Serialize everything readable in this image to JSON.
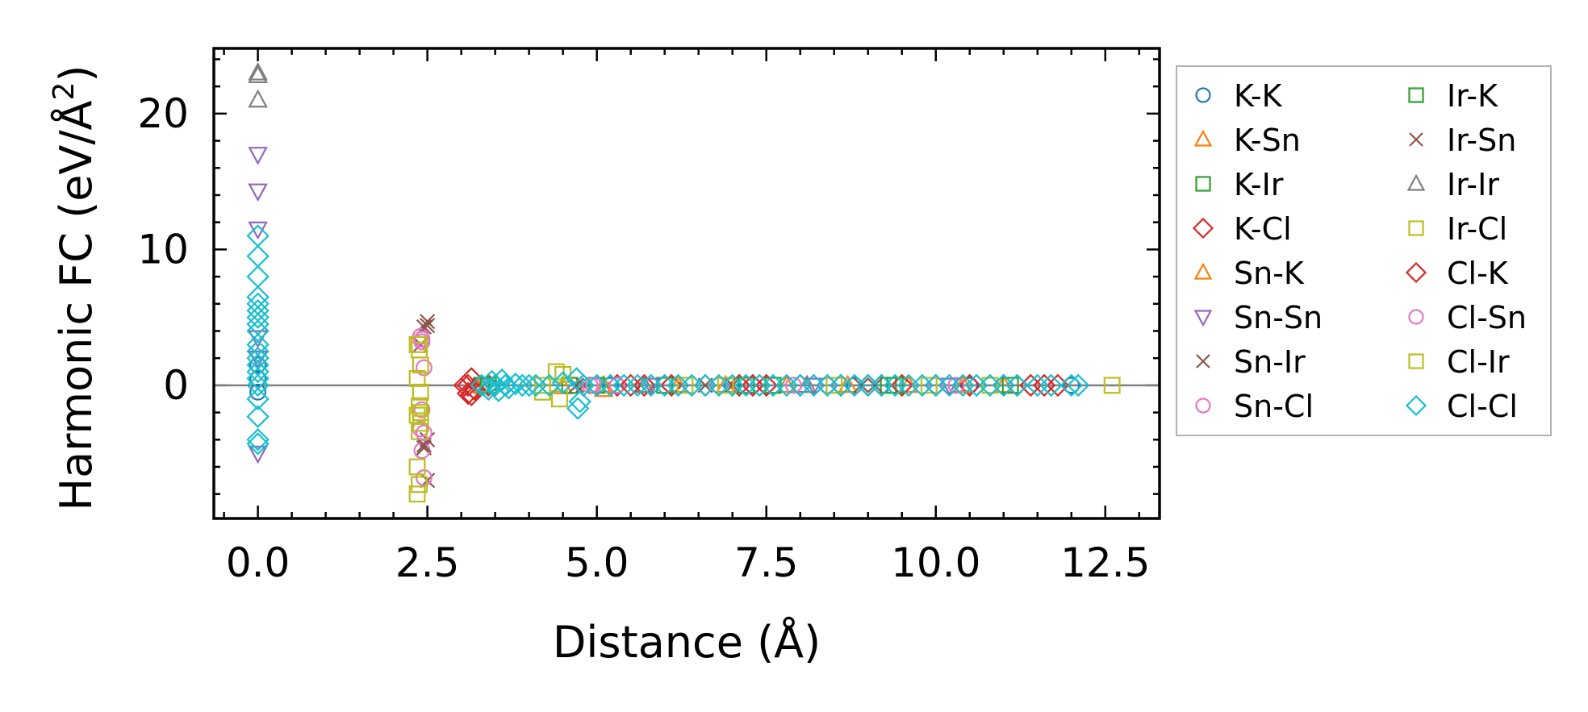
{
  "chart_data": {
    "type": "scatter",
    "title": "",
    "xlabel": "Distance (Å)",
    "ylabel_prefix": "Harmonic FC (eV/Å",
    "ylabel_sup": "2",
    "ylabel_suffix": ")",
    "xlim": [
      -0.65,
      13.3
    ],
    "ylim": [
      -9.8,
      24.8
    ],
    "xticks": [
      0.0,
      2.5,
      5.0,
      7.5,
      10.0,
      12.5
    ],
    "xtick_labels": [
      "0.0",
      "2.5",
      "5.0",
      "7.5",
      "10.0",
      "12.5"
    ],
    "yticks": [
      0,
      10,
      20
    ],
    "ytick_labels": [
      "0",
      "10",
      "20"
    ],
    "grid": false,
    "zero_line": true,
    "legend_position": "outside-right",
    "series": [
      {
        "name": "K-K",
        "marker": "circle",
        "color": "#1f77b4",
        "points": [
          [
            0.0,
            0.5
          ],
          [
            0.0,
            1.5
          ],
          [
            0.0,
            -0.5
          ],
          [
            3.3,
            0.0
          ],
          [
            5.2,
            0.0
          ],
          [
            7.0,
            0.0
          ],
          [
            8.8,
            0.0
          ],
          [
            10.5,
            0.0
          ],
          [
            12.0,
            0.0
          ]
        ]
      },
      {
        "name": "K-Sn",
        "marker": "triangle-up",
        "color": "#ff7f0e",
        "points": [
          [
            3.3,
            0.0
          ],
          [
            4.5,
            -0.1
          ],
          [
            5.1,
            -0.3
          ],
          [
            6.2,
            0.0
          ],
          [
            7.8,
            0.0
          ],
          [
            9.6,
            0.0
          ],
          [
            11.0,
            0.0
          ]
        ]
      },
      {
        "name": "K-Ir",
        "marker": "square",
        "color": "#2ca02c",
        "points": [
          [
            3.3,
            0.0
          ],
          [
            4.6,
            0.0
          ],
          [
            6.0,
            0.0
          ],
          [
            7.6,
            0.0
          ],
          [
            9.3,
            0.0
          ],
          [
            11.1,
            0.0
          ]
        ]
      },
      {
        "name": "K-Cl",
        "marker": "diamond",
        "color": "#d62728",
        "points": [
          [
            3.05,
            0.0
          ],
          [
            3.1,
            -0.6
          ],
          [
            3.15,
            0.5
          ],
          [
            3.2,
            -0.3
          ],
          [
            3.4,
            0.0
          ],
          [
            5.3,
            0.0
          ],
          [
            5.7,
            0.0
          ],
          [
            6.1,
            0.0
          ],
          [
            6.6,
            0.0
          ],
          [
            7.1,
            0.0
          ],
          [
            7.5,
            0.0
          ],
          [
            8.0,
            0.0
          ],
          [
            8.6,
            0.0
          ],
          [
            9.0,
            0.0
          ],
          [
            9.5,
            0.0
          ],
          [
            10.0,
            0.0
          ],
          [
            10.5,
            0.0
          ],
          [
            11.2,
            0.0
          ],
          [
            11.6,
            0.0
          ],
          [
            11.8,
            0.0
          ]
        ]
      },
      {
        "name": "Sn-K",
        "marker": "triangle-up",
        "color": "#ff7f0e",
        "points": [
          [
            3.3,
            0.0
          ],
          [
            5.1,
            0.0
          ],
          [
            6.9,
            0.0
          ],
          [
            8.7,
            0.0
          ],
          [
            10.4,
            0.0
          ]
        ]
      },
      {
        "name": "Sn-Sn",
        "marker": "triangle-down",
        "color": "#9467bd",
        "points": [
          [
            0.0,
            17.0
          ],
          [
            0.0,
            14.3
          ],
          [
            0.0,
            11.5
          ],
          [
            0.0,
            -5.0
          ],
          [
            0.0,
            3.5
          ],
          [
            0.0,
            2.0
          ],
          [
            5.8,
            0.0
          ],
          [
            8.2,
            0.0
          ],
          [
            10.2,
            0.0
          ]
        ]
      },
      {
        "name": "Sn-Ir",
        "marker": "x",
        "color": "#8c564b",
        "points": [
          [
            2.5,
            4.7
          ],
          [
            2.45,
            4.3
          ],
          [
            2.5,
            -4.0
          ],
          [
            2.45,
            -4.6
          ],
          [
            2.5,
            -7.0
          ],
          [
            2.4,
            3.0
          ],
          [
            4.8,
            0.0
          ],
          [
            7.0,
            0.0
          ],
          [
            9.1,
            0.0
          ]
        ]
      },
      {
        "name": "Sn-Cl",
        "marker": "circle",
        "color": "#e377c2",
        "points": [
          [
            2.4,
            3.6
          ],
          [
            2.42,
            3.2
          ],
          [
            2.45,
            1.3
          ],
          [
            2.42,
            -1.8
          ],
          [
            2.4,
            -3.2
          ],
          [
            2.42,
            -4.8
          ],
          [
            2.45,
            -6.8
          ],
          [
            4.9,
            0.0
          ],
          [
            5.3,
            0.0
          ],
          [
            6.8,
            0.0
          ],
          [
            8.4,
            0.0
          ],
          [
            10.0,
            0.0
          ]
        ]
      },
      {
        "name": "Ir-K",
        "marker": "square",
        "color": "#2ca02c",
        "points": [
          [
            3.4,
            0.0
          ],
          [
            5.0,
            0.0
          ],
          [
            7.2,
            0.0
          ],
          [
            9.4,
            0.0
          ]
        ]
      },
      {
        "name": "Ir-Sn",
        "marker": "x",
        "color": "#8c564b",
        "points": [
          [
            2.5,
            4.4
          ],
          [
            2.45,
            -4.4
          ],
          [
            4.7,
            0.0
          ],
          [
            6.6,
            0.0
          ],
          [
            8.9,
            0.0
          ]
        ]
      },
      {
        "name": "Ir-Ir",
        "marker": "triangle-up",
        "color": "#7f7f7f",
        "points": [
          [
            0.0,
            23.0
          ],
          [
            0.0,
            22.8
          ],
          [
            0.0,
            21.0
          ],
          [
            5.7,
            0.0
          ],
          [
            8.1,
            0.0
          ]
        ]
      },
      {
        "name": "Ir-Cl",
        "marker": "square",
        "color": "#bcbd22",
        "points": [
          [
            2.35,
            3.0
          ],
          [
            2.38,
            2.6
          ],
          [
            2.35,
            0.5
          ],
          [
            2.4,
            -0.5
          ],
          [
            2.38,
            -1.5
          ],
          [
            2.35,
            -2.2
          ],
          [
            2.4,
            -2.8
          ],
          [
            2.38,
            -3.4
          ],
          [
            2.35,
            -6.0
          ],
          [
            2.38,
            -7.3
          ],
          [
            2.35,
            -8.0
          ],
          [
            2.4,
            1.5
          ],
          [
            4.2,
            0.0
          ],
          [
            4.4,
            1.0
          ],
          [
            4.45,
            -1.0
          ],
          [
            6.3,
            0.0
          ],
          [
            8.5,
            0.0
          ],
          [
            10.8,
            0.0
          ],
          [
            12.6,
            0.0
          ]
        ]
      },
      {
        "name": "Cl-K",
        "marker": "diamond",
        "color": "#d62728",
        "points": [
          [
            3.1,
            0.0
          ],
          [
            3.15,
            -0.7
          ],
          [
            5.5,
            0.0
          ],
          [
            7.3,
            0.0
          ],
          [
            9.2,
            0.0
          ],
          [
            11.0,
            0.0
          ],
          [
            11.4,
            0.0
          ]
        ]
      },
      {
        "name": "Cl-Sn",
        "marker": "circle",
        "color": "#e377c2",
        "points": [
          [
            2.42,
            3.4
          ],
          [
            2.45,
            -3.5
          ],
          [
            4.95,
            0.0
          ],
          [
            7.9,
            0.0
          ],
          [
            10.3,
            0.0
          ]
        ]
      },
      {
        "name": "Cl-Ir",
        "marker": "square",
        "color": "#bcbd22",
        "points": [
          [
            2.38,
            3.0
          ],
          [
            2.4,
            -2.0
          ],
          [
            4.2,
            -0.5
          ],
          [
            4.5,
            0.8
          ],
          [
            6.9,
            0.0
          ],
          [
            9.9,
            0.0
          ]
        ]
      },
      {
        "name": "Cl-Cl",
        "marker": "diamond",
        "color": "#17becf",
        "points": [
          [
            0.0,
            11.0
          ],
          [
            0.0,
            9.5
          ],
          [
            0.0,
            8.0
          ],
          [
            0.0,
            6.5
          ],
          [
            0.0,
            6.0
          ],
          [
            0.0,
            5.5
          ],
          [
            0.0,
            5.0
          ],
          [
            0.0,
            4.5
          ],
          [
            0.0,
            4.0
          ],
          [
            0.0,
            3.0
          ],
          [
            0.0,
            2.5
          ],
          [
            0.0,
            2.0
          ],
          [
            0.0,
            1.5
          ],
          [
            0.0,
            1.0
          ],
          [
            0.0,
            0.5
          ],
          [
            0.0,
            0.0
          ],
          [
            0.0,
            -1.0
          ],
          [
            0.0,
            -2.3
          ],
          [
            0.0,
            -4.0
          ],
          [
            0.0,
            -4.3
          ],
          [
            3.3,
            0.0
          ],
          [
            3.4,
            -0.3
          ],
          [
            3.45,
            0.3
          ],
          [
            3.5,
            0.0
          ],
          [
            3.55,
            -0.4
          ],
          [
            3.6,
            0.4
          ],
          [
            3.65,
            0.0
          ],
          [
            3.7,
            -0.2
          ],
          [
            3.8,
            0.1
          ],
          [
            3.9,
            0.0
          ],
          [
            4.0,
            0.0
          ],
          [
            4.1,
            0.0
          ],
          [
            4.3,
            0.0
          ],
          [
            4.5,
            0.2
          ],
          [
            4.7,
            0.5
          ],
          [
            4.72,
            -1.7
          ],
          [
            4.75,
            -1.2
          ],
          [
            4.8,
            0.0
          ],
          [
            5.0,
            0.0
          ],
          [
            5.2,
            0.0
          ],
          [
            5.4,
            0.0
          ],
          [
            5.6,
            0.0
          ],
          [
            5.8,
            0.0
          ],
          [
            6.0,
            0.0
          ],
          [
            6.2,
            0.0
          ],
          [
            6.4,
            0.0
          ],
          [
            6.6,
            0.0
          ],
          [
            6.8,
            0.0
          ],
          [
            7.0,
            0.0
          ],
          [
            7.2,
            0.0
          ],
          [
            7.4,
            0.0
          ],
          [
            7.6,
            0.0
          ],
          [
            7.8,
            0.0
          ],
          [
            8.0,
            0.0
          ],
          [
            8.2,
            0.0
          ],
          [
            8.4,
            0.0
          ],
          [
            8.6,
            0.0
          ],
          [
            8.8,
            0.0
          ],
          [
            9.0,
            0.0
          ],
          [
            9.2,
            0.0
          ],
          [
            9.4,
            0.0
          ],
          [
            9.6,
            0.0
          ],
          [
            9.8,
            0.0
          ],
          [
            10.0,
            0.0
          ],
          [
            10.2,
            0.0
          ],
          [
            10.4,
            0.0
          ],
          [
            10.6,
            0.0
          ],
          [
            10.8,
            0.0
          ],
          [
            11.0,
            0.0
          ],
          [
            11.2,
            0.0
          ],
          [
            11.5,
            0.0
          ],
          [
            11.7,
            0.0
          ],
          [
            12.0,
            0.0
          ],
          [
            12.1,
            0.0
          ]
        ]
      }
    ]
  }
}
